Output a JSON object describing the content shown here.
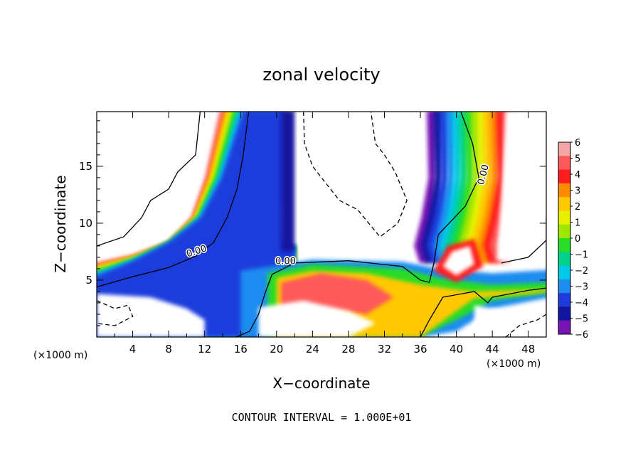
{
  "chart_data": {
    "type": "heatmap",
    "title": "zonal velocity",
    "xlabel": "X−coordinate",
    "ylabel": "Z−coordinate",
    "x_unit": "(×1000 m)",
    "y_unit": "(×1000 m)",
    "xlim": [
      0,
      50
    ],
    "ylim": [
      0,
      19.8
    ],
    "xticks": [
      4,
      8,
      12,
      16,
      20,
      24,
      28,
      32,
      36,
      40,
      44,
      48
    ],
    "yticks": [
      5,
      10,
      15
    ],
    "colorbar": {
      "levels": [
        6,
        5,
        4,
        3,
        2,
        1,
        0,
        -1,
        -2,
        -3,
        -4,
        -5,
        -6
      ],
      "colors": [
        "#f4a6a6",
        "#ff5a5a",
        "#ff1e1e",
        "#ff8c00",
        "#ffc800",
        "#e6f000",
        "#a0e600",
        "#28dc28",
        "#00d28c",
        "#00c8e6",
        "#1e8cf0",
        "#1e3cdc",
        "#1414a0",
        "#7814b4"
      ]
    },
    "contour_label": "0.00",
    "footer": "CONTOUR INTERVAL = 1.000E+01"
  }
}
